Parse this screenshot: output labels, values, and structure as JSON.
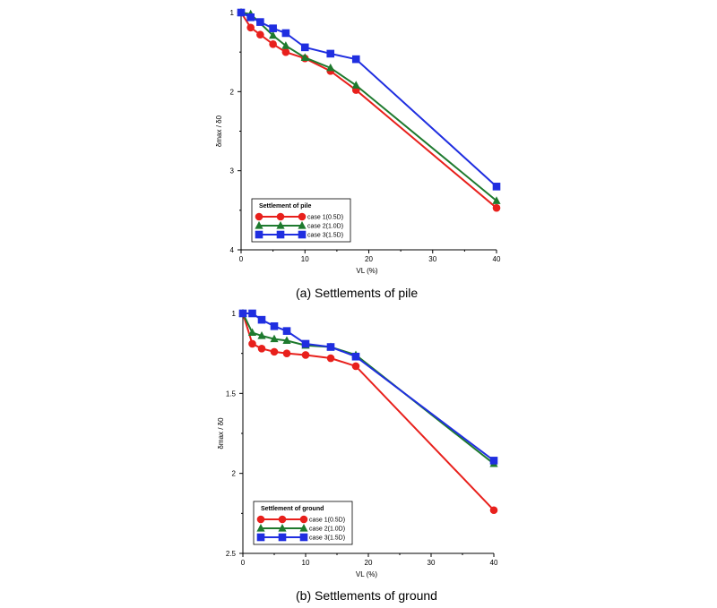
{
  "chart_data": [
    {
      "type": "line",
      "caption": "(a)  Settlements  of  pile",
      "xlabel": "VL (%)",
      "ylabel": "δmax / δ0",
      "xlim": [
        0,
        40
      ],
      "ylim": [
        1,
        4
      ],
      "y_inverted": true,
      "x_ticks": [
        0,
        10,
        20,
        30,
        40
      ],
      "y_ticks": [
        1,
        2,
        3,
        4
      ],
      "legend": {
        "title": "Settlement of pile",
        "position": "bottom-left"
      },
      "series": [
        {
          "name": "case 1(0.5D)",
          "color": "#e8201c",
          "marker": "circle",
          "x": [
            0,
            1.5,
            3,
            5,
            7,
            10,
            14,
            18,
            40
          ],
          "y": [
            1.0,
            1.19,
            1.28,
            1.4,
            1.5,
            1.58,
            1.74,
            1.98,
            3.47
          ]
        },
        {
          "name": "case 2(1.0D)",
          "color": "#1e7a2e",
          "marker": "triangle",
          "x": [
            0,
            1.5,
            5,
            7,
            10,
            14,
            18,
            40
          ],
          "y": [
            1.0,
            1.02,
            1.29,
            1.42,
            1.57,
            1.7,
            1.92,
            3.38
          ]
        },
        {
          "name": "case 3(1.5D)",
          "color": "#1f2ee0",
          "marker": "square",
          "x": [
            0,
            1.5,
            3,
            5,
            7,
            10,
            14,
            18,
            40
          ],
          "y": [
            1.0,
            1.06,
            1.12,
            1.2,
            1.26,
            1.44,
            1.52,
            1.59,
            3.2
          ]
        }
      ]
    },
    {
      "type": "line",
      "caption": "(b)  Settlements  of  ground",
      "xlabel": "VL (%)",
      "ylabel": "δmax / δ0",
      "xlim": [
        0,
        40
      ],
      "ylim": [
        1,
        2.5
      ],
      "y_inverted": true,
      "x_ticks": [
        0,
        10,
        20,
        30,
        40
      ],
      "y_ticks": [
        1,
        1.5,
        2,
        2.5
      ],
      "legend": {
        "title": "Settlement of ground",
        "position": "bottom-left"
      },
      "series": [
        {
          "name": "case 1(0.5D)",
          "color": "#e8201c",
          "marker": "circle",
          "x": [
            0,
            1.5,
            3,
            5,
            7,
            10,
            14,
            18,
            40
          ],
          "y": [
            1.0,
            1.19,
            1.22,
            1.24,
            1.25,
            1.26,
            1.28,
            1.33,
            2.23
          ]
        },
        {
          "name": "case 2(1.0D)",
          "color": "#1e7a2e",
          "marker": "triangle",
          "x": [
            0,
            1.5,
            3,
            5,
            7,
            10,
            14,
            18,
            40
          ],
          "y": [
            1.0,
            1.12,
            1.14,
            1.16,
            1.17,
            1.2,
            1.21,
            1.26,
            1.94
          ]
        },
        {
          "name": "case 3(1.5D)",
          "color": "#1f2ee0",
          "marker": "square",
          "x": [
            0,
            1.5,
            3,
            5,
            7,
            10,
            14,
            18,
            40
          ],
          "y": [
            1.0,
            1.0,
            1.04,
            1.08,
            1.11,
            1.19,
            1.21,
            1.27,
            1.92
          ]
        }
      ]
    }
  ]
}
